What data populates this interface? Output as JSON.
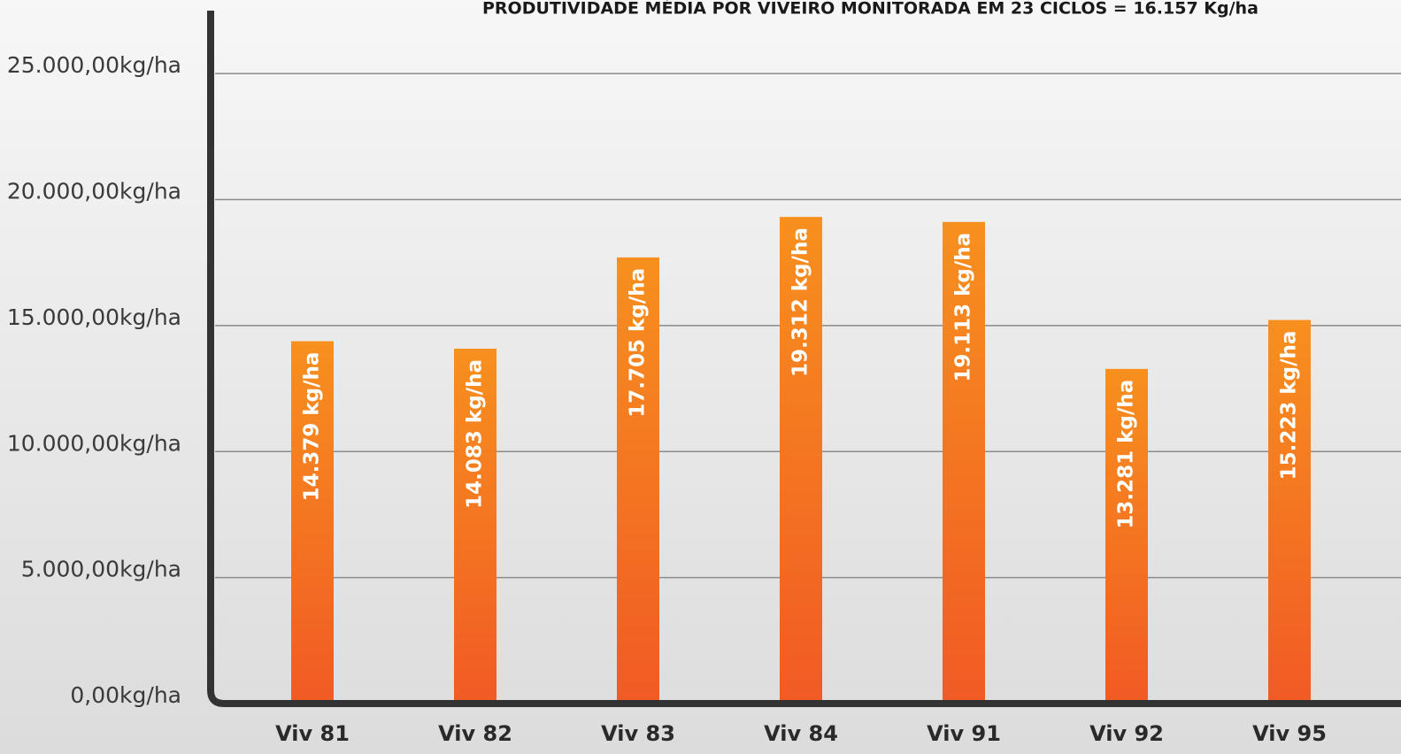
{
  "chart_data": {
    "type": "bar",
    "title": "PRODUTIVIDADE MÉDIA POR VIVEIRO MONITORADA EM 23 CICLOS = 16.157 Kg/ha",
    "categories": [
      "Viv 81",
      "Viv 82",
      "Viv 83",
      "Viv 84",
      "Viv 91",
      "Viv 92",
      "Viv 95"
    ],
    "values": [
      14379,
      14083,
      17705,
      19312,
      19113,
      13281,
      15223
    ],
    "value_labels": [
      "14.379 kg/ha",
      "14.083 kg/ha",
      "17.705 kg/ha",
      "19.312 kg/ha",
      "19.113 kg/ha",
      "13.281 kg/ha",
      "15.223 kg/ha"
    ],
    "color": "#f7901e",
    "ylim": [
      0,
      27500
    ],
    "yticks": [
      {
        "value": 0,
        "label": "0,00kg/ha"
      },
      {
        "value": 5000,
        "label": "5.000,00kg/ha"
      },
      {
        "value": 10000,
        "label": "10.000,00kg/ha"
      },
      {
        "value": 15000,
        "label": "15.000,00kg/ha"
      },
      {
        "value": 20000,
        "label": "20.000,00kg/ha"
      },
      {
        "value": 25000,
        "label": "25.000,00kg/ha"
      }
    ],
    "grid": true
  }
}
